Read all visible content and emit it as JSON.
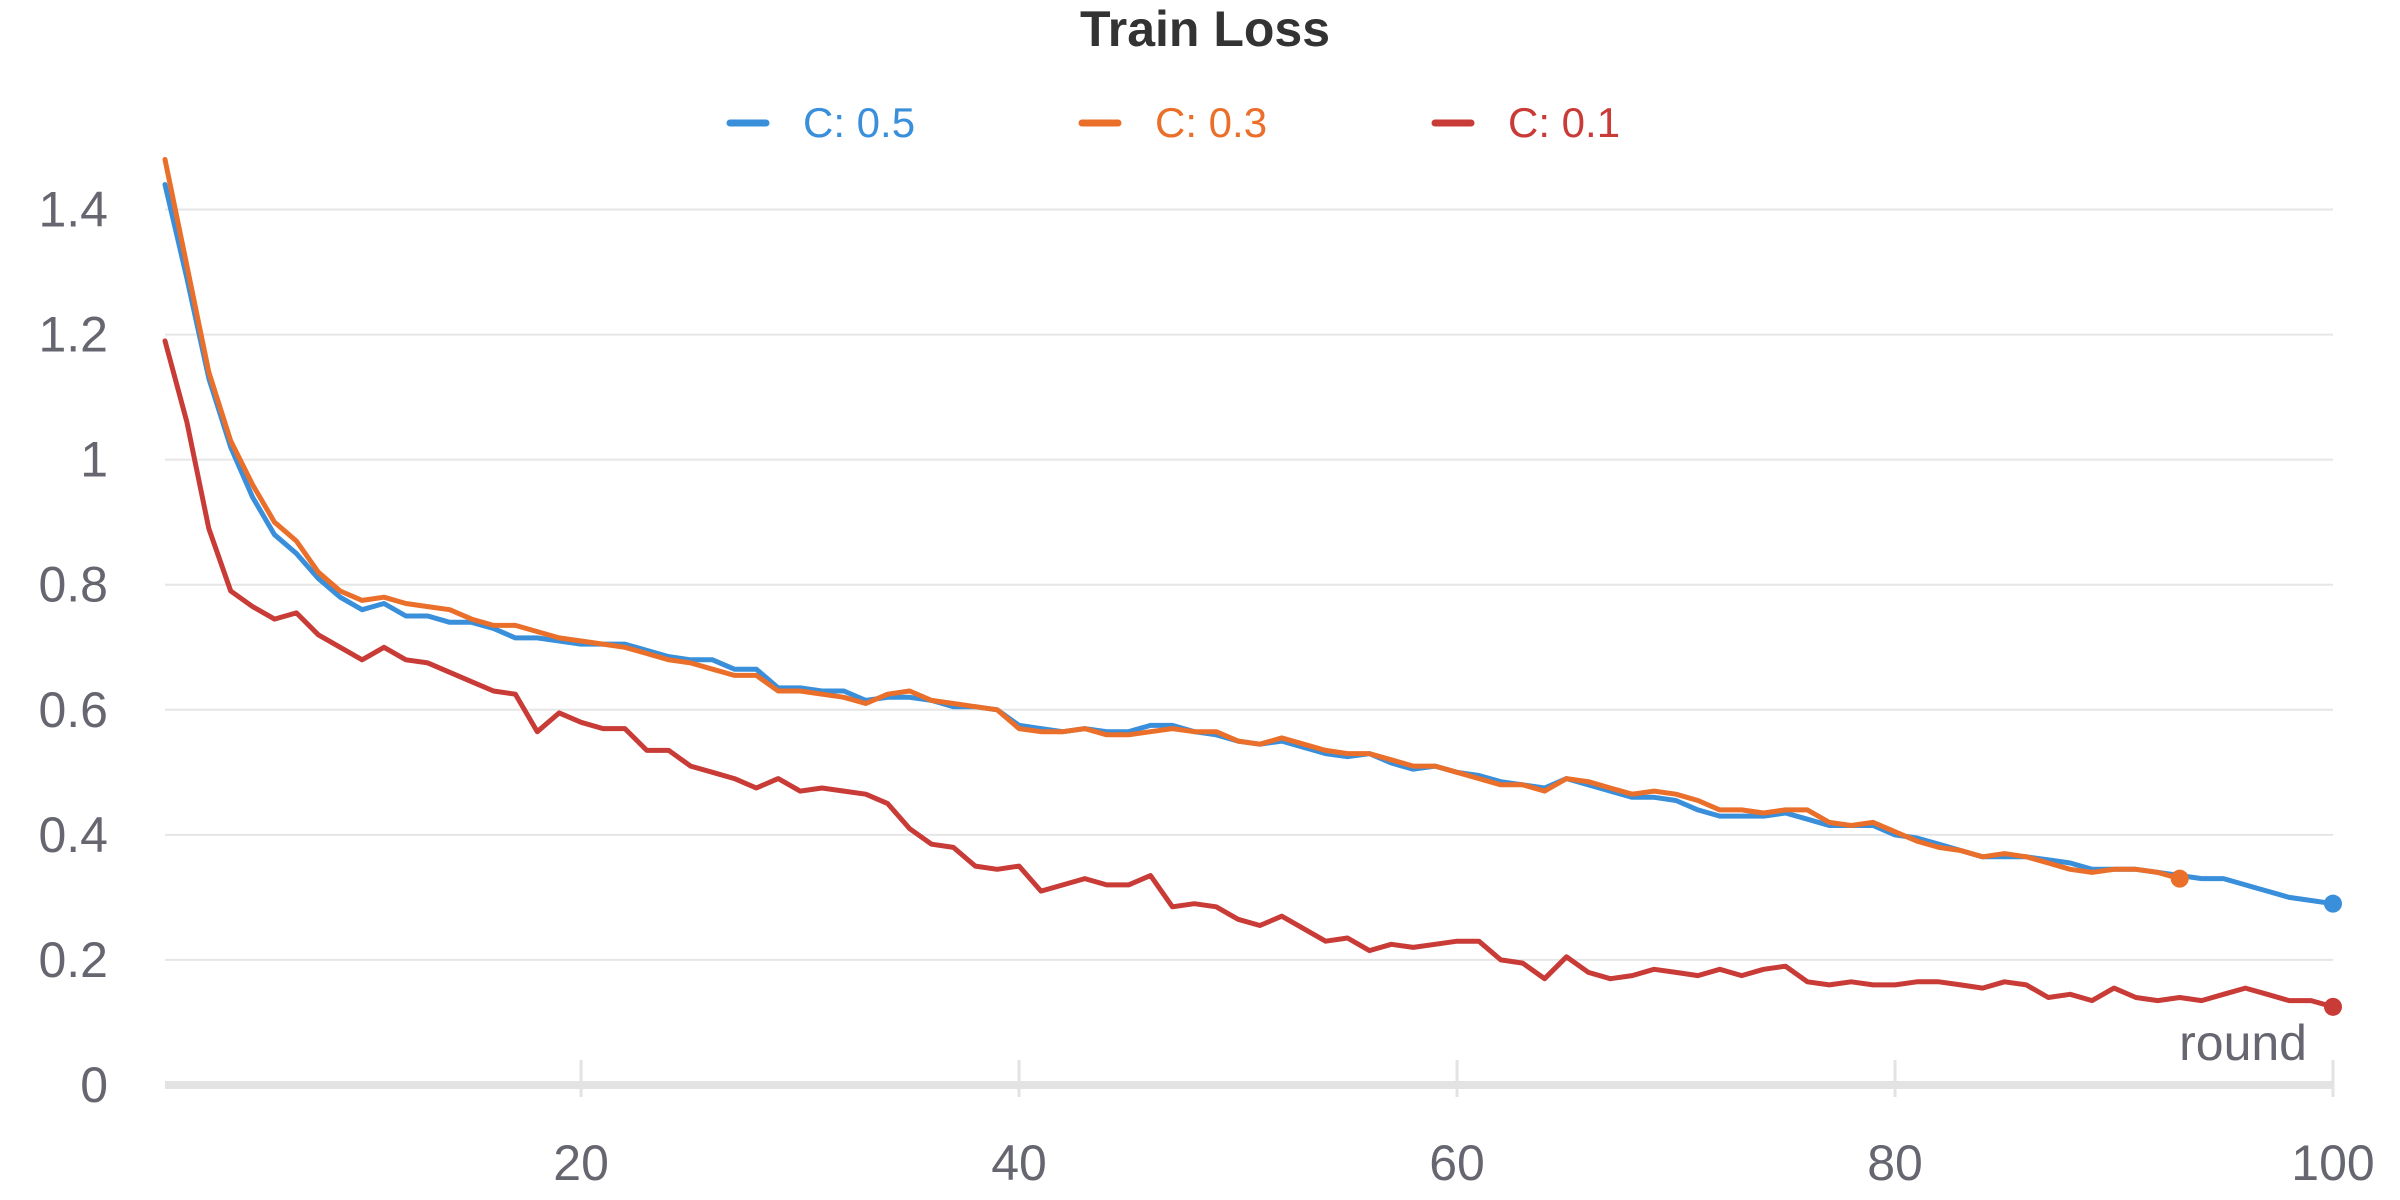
{
  "chart_data": {
    "type": "line",
    "title": "Train Loss",
    "xlabel": "round",
    "ylabel": "",
    "xlim": [
      1,
      100
    ],
    "ylim": [
      0,
      1.5
    ],
    "grid": true,
    "legend_position": "top-center",
    "x_ticks": [
      {
        "value": 20,
        "label": "20"
      },
      {
        "value": 40,
        "label": "40"
      },
      {
        "value": 60,
        "label": "60"
      },
      {
        "value": 80,
        "label": "80"
      },
      {
        "value": 100,
        "label": "100"
      }
    ],
    "y_ticks": [
      {
        "value": 0,
        "label": "0"
      },
      {
        "value": 0.2,
        "label": "0.2"
      },
      {
        "value": 0.4,
        "label": "0.4"
      },
      {
        "value": 0.6,
        "label": "0.6"
      },
      {
        "value": 0.8,
        "label": "0.8"
      },
      {
        "value": 1,
        "label": "1"
      },
      {
        "value": 1.2,
        "label": "1.2"
      },
      {
        "value": 1.4,
        "label": "1.4"
      }
    ],
    "series": [
      {
        "name": "C: 0.5",
        "color": "#3a8fdb",
        "x_start": 1,
        "values": [
          1.44,
          1.29,
          1.13,
          1.02,
          0.94,
          0.88,
          0.85,
          0.81,
          0.78,
          0.76,
          0.77,
          0.75,
          0.75,
          0.74,
          0.74,
          0.73,
          0.715,
          0.715,
          0.71,
          0.705,
          0.705,
          0.705,
          0.695,
          0.685,
          0.68,
          0.68,
          0.665,
          0.665,
          0.635,
          0.635,
          0.63,
          0.63,
          0.615,
          0.62,
          0.62,
          0.615,
          0.605,
          0.605,
          0.6,
          0.575,
          0.57,
          0.565,
          0.57,
          0.565,
          0.565,
          0.575,
          0.575,
          0.565,
          0.56,
          0.55,
          0.545,
          0.55,
          0.54,
          0.53,
          0.525,
          0.53,
          0.515,
          0.505,
          0.51,
          0.5,
          0.495,
          0.485,
          0.48,
          0.475,
          0.49,
          0.48,
          0.47,
          0.46,
          0.46,
          0.455,
          0.44,
          0.43,
          0.43,
          0.43,
          0.435,
          0.425,
          0.415,
          0.415,
          0.415,
          0.4,
          0.395,
          0.385,
          0.375,
          0.365,
          0.365,
          0.365,
          0.36,
          0.355,
          0.345,
          0.345,
          0.345,
          0.34,
          0.335,
          0.33,
          0.33,
          0.32,
          0.31,
          0.3,
          0.295,
          0.29
        ]
      },
      {
        "name": "C: 0.3",
        "color": "#e96f2b",
        "x_start": 1,
        "values": [
          1.48,
          1.31,
          1.14,
          1.03,
          0.96,
          0.9,
          0.87,
          0.82,
          0.79,
          0.775,
          0.78,
          0.77,
          0.765,
          0.76,
          0.745,
          0.735,
          0.735,
          0.725,
          0.715,
          0.71,
          0.705,
          0.7,
          0.69,
          0.68,
          0.675,
          0.665,
          0.655,
          0.655,
          0.63,
          0.63,
          0.625,
          0.62,
          0.61,
          0.625,
          0.63,
          0.615,
          0.61,
          0.605,
          0.6,
          0.57,
          0.565,
          0.565,
          0.57,
          0.56,
          0.56,
          0.565,
          0.57,
          0.565,
          0.565,
          0.55,
          0.545,
          0.555,
          0.545,
          0.535,
          0.53,
          0.53,
          0.52,
          0.51,
          0.51,
          0.5,
          0.49,
          0.48,
          0.48,
          0.47,
          0.49,
          0.485,
          0.475,
          0.465,
          0.47,
          0.465,
          0.455,
          0.44,
          0.44,
          0.435,
          0.44,
          0.44,
          0.42,
          0.415,
          0.42,
          0.405,
          0.39,
          0.38,
          0.375,
          0.365,
          0.37,
          0.365,
          0.355,
          0.345,
          0.34,
          0.345,
          0.345,
          0.34,
          0.33
        ]
      },
      {
        "name": "C: 0.1",
        "color": "#c83b37",
        "x_start": 1,
        "values": [
          1.19,
          1.06,
          0.89,
          0.79,
          0.765,
          0.745,
          0.755,
          0.72,
          0.7,
          0.68,
          0.7,
          0.68,
          0.675,
          0.66,
          0.645,
          0.63,
          0.625,
          0.565,
          0.595,
          0.58,
          0.57,
          0.57,
          0.535,
          0.535,
          0.51,
          0.5,
          0.49,
          0.475,
          0.49,
          0.47,
          0.475,
          0.47,
          0.465,
          0.45,
          0.41,
          0.385,
          0.38,
          0.35,
          0.345,
          0.35,
          0.31,
          0.32,
          0.33,
          0.32,
          0.32,
          0.335,
          0.285,
          0.29,
          0.285,
          0.265,
          0.255,
          0.27,
          0.25,
          0.23,
          0.235,
          0.215,
          0.225,
          0.22,
          0.225,
          0.23,
          0.23,
          0.2,
          0.195,
          0.17,
          0.205,
          0.18,
          0.17,
          0.175,
          0.185,
          0.18,
          0.175,
          0.185,
          0.175,
          0.185,
          0.19,
          0.165,
          0.16,
          0.165,
          0.16,
          0.16,
          0.165,
          0.165,
          0.16,
          0.155,
          0.165,
          0.16,
          0.14,
          0.145,
          0.135,
          0.155,
          0.14,
          0.135,
          0.14,
          0.135,
          0.145,
          0.155,
          0.145,
          0.135,
          0.135,
          0.125
        ]
      }
    ]
  }
}
